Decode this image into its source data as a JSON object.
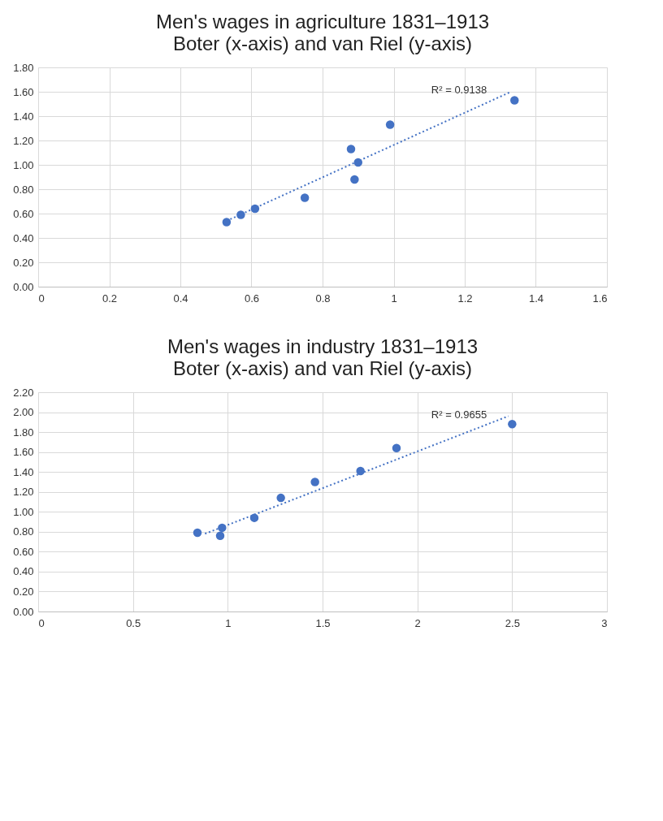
{
  "chart_data": [
    {
      "type": "scatter",
      "title": "Men's wages in agriculture 1831–1913",
      "subtitle": "Boter (x-axis) and van Riel (y-axis)",
      "xlim": [
        0,
        1.6
      ],
      "xticks": [
        0,
        0.2,
        0.4,
        0.6,
        0.8,
        1,
        1.2,
        1.4,
        1.6
      ],
      "ylim": [
        0,
        1.8
      ],
      "yticks": [
        {
          "value": 0,
          "label": "0.00"
        },
        {
          "value": 0.2,
          "label": "0.20"
        },
        {
          "value": 0.4,
          "label": "0.40"
        },
        {
          "value": 0.6,
          "label": "0.60"
        },
        {
          "value": 0.8,
          "label": "0.80"
        },
        {
          "value": 1,
          "label": "1.00"
        },
        {
          "value": 1.2,
          "label": "1.20"
        },
        {
          "value": 1.4,
          "label": "1.40"
        },
        {
          "value": 1.6,
          "label": "1.60"
        },
        {
          "value": 1.8,
          "label": "1.80"
        }
      ],
      "grid": true,
      "marker": "circle",
      "series": [
        {
          "color": "#4472c4",
          "x": [
            0.53,
            0.57,
            0.61,
            0.75,
            0.88,
            0.89,
            0.9,
            0.99,
            1.34
          ],
          "values": [
            0.53,
            0.59,
            0.64,
            0.73,
            1.13,
            0.88,
            1.02,
            1.33,
            1.53
          ]
        },
        {
          "type": "line",
          "line_style": "dotted",
          "marker": "none",
          "color": "#4472c4",
          "x": [
            0.53,
            1.33
          ],
          "values": [
            0.54,
            1.6
          ]
        }
      ],
      "annotations": [
        "R² = 0.9138"
      ]
    },
    {
      "type": "scatter",
      "title": "Men's wages in industry 1831–1913",
      "subtitle": "Boter (x-axis) and van Riel (y-axis)",
      "xlim": [
        0,
        3
      ],
      "xticks": [
        0,
        0.5,
        1,
        1.5,
        2,
        2.5,
        3
      ],
      "ylim": [
        0,
        2.2
      ],
      "yticks": [
        {
          "value": 0,
          "label": "0.00"
        },
        {
          "value": 0.2,
          "label": "0.20"
        },
        {
          "value": 0.4,
          "label": "0.40"
        },
        {
          "value": 0.6,
          "label": "0.60"
        },
        {
          "value": 0.8,
          "label": "0.80"
        },
        {
          "value": 1,
          "label": "1.00"
        },
        {
          "value": 1.2,
          "label": "1.20"
        },
        {
          "value": 1.4,
          "label": "1.40"
        },
        {
          "value": 1.6,
          "label": "1.60"
        },
        {
          "value": 1.8,
          "label": "1.80"
        },
        {
          "value": 2,
          "label": "2.00"
        },
        {
          "value": 2.2,
          "label": "2.20"
        }
      ],
      "grid": true,
      "marker": "circle",
      "series": [
        {
          "color": "#4472c4",
          "x": [
            0.84,
            0.96,
            0.97,
            1.14,
            1.28,
            1.46,
            1.7,
            1.89,
            2.5
          ],
          "values": [
            0.79,
            0.76,
            0.84,
            0.94,
            1.14,
            1.3,
            1.41,
            1.64,
            1.88
          ]
        },
        {
          "type": "line",
          "line_style": "dotted",
          "marker": "none",
          "color": "#4472c4",
          "x": [
            0.88,
            2.48
          ],
          "values": [
            0.78,
            1.96
          ]
        }
      ],
      "annotations": [
        "R² = 0.9655"
      ]
    }
  ]
}
